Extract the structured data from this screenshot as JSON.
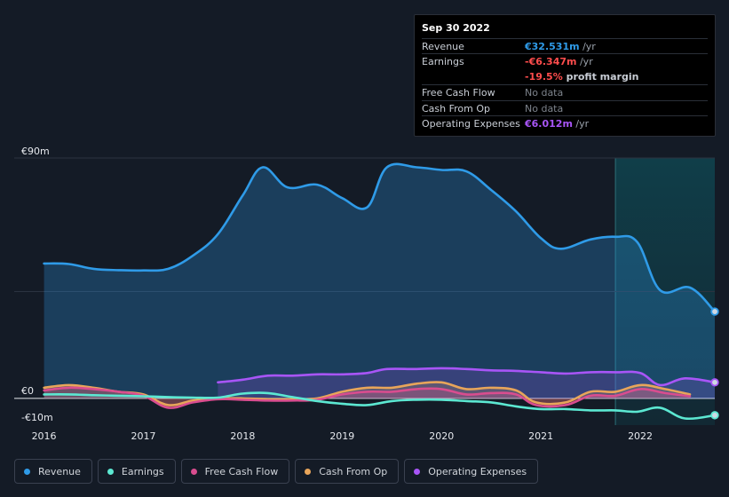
{
  "tooltip": {
    "date": "Sep 30 2022",
    "rows": [
      {
        "label": "Revenue",
        "value": "€32.531m",
        "unit": " /yr",
        "color": "#2f9be8"
      },
      {
        "label": "Earnings",
        "value": "-€6.347m",
        "unit": " /yr",
        "color": "#ff4d4d"
      },
      {
        "label": "",
        "value": "-19.5%",
        "unit": " profit margin",
        "color": "#ff4d4d"
      },
      {
        "label": "Free Cash Flow",
        "value": "",
        "unit": "No data",
        "color": "#7d838c"
      },
      {
        "label": "Cash From Op",
        "value": "",
        "unit": "No data",
        "color": "#7d838c"
      },
      {
        "label": "Operating Expenses",
        "value": "€6.012m",
        "unit": " /yr",
        "color": "#a855f7"
      }
    ]
  },
  "legend": [
    {
      "label": "Revenue",
      "color": "#2f9be8"
    },
    {
      "label": "Earnings",
      "color": "#5ce8d2"
    },
    {
      "label": "Free Cash Flow",
      "color": "#d94d8f"
    },
    {
      "label": "Cash From Op",
      "color": "#e8a55a"
    },
    {
      "label": "Operating Expenses",
      "color": "#a855f7"
    }
  ],
  "chart_data": {
    "type": "area",
    "title": "",
    "xlabel": "",
    "ylabel": "",
    "y_tick_labels": [
      "€90m",
      "€0",
      "-€10m"
    ],
    "x_tick_labels": [
      "2016",
      "2017",
      "2018",
      "2019",
      "2020",
      "2021",
      "2022"
    ],
    "x_ticks": [
      2016,
      2017,
      2018,
      2019,
      2020,
      2021,
      2022
    ],
    "xlim": [
      2015.7,
      2022.75
    ],
    "ylim": [
      -10,
      90
    ],
    "grid": "horizontal",
    "legend_position": "bottom",
    "highlight_range": [
      2021.75,
      2022.75
    ],
    "series": [
      {
        "name": "Revenue",
        "color": "#2f9be8",
        "fill": true,
        "x": [
          2016.0,
          2016.25,
          2016.5,
          2016.75,
          2017.0,
          2017.25,
          2017.5,
          2017.75,
          2018.0,
          2018.2,
          2018.45,
          2018.75,
          2019.0,
          2019.25,
          2019.45,
          2019.75,
          2020.0,
          2020.25,
          2020.5,
          2020.75,
          2021.0,
          2021.2,
          2021.5,
          2021.75,
          2021.97,
          2022.2,
          2022.5,
          2022.75
        ],
        "y": [
          50.5,
          50.3,
          48.5,
          48.0,
          47.9,
          48.5,
          53.5,
          61.5,
          76.0,
          86.5,
          79.0,
          80.0,
          75.0,
          71.5,
          86.5,
          86.5,
          85.5,
          85.0,
          78.0,
          70.0,
          60.0,
          56.0,
          59.5,
          60.5,
          58.5,
          40.5,
          41.5,
          32.5
        ]
      },
      {
        "name": "Earnings",
        "color": "#5ce8d2",
        "fill": false,
        "x": [
          2016.0,
          2016.25,
          2016.5,
          2016.75,
          2017.0,
          2017.25,
          2017.5,
          2017.75,
          2018.0,
          2018.25,
          2018.5,
          2018.75,
          2019.0,
          2019.25,
          2019.5,
          2019.75,
          2020.0,
          2020.25,
          2020.5,
          2020.75,
          2021.0,
          2021.25,
          2021.5,
          2021.75,
          2021.97,
          2022.2,
          2022.45,
          2022.75
        ],
        "y": [
          1.5,
          1.5,
          1.2,
          1.0,
          0.8,
          0.5,
          0.3,
          0.3,
          1.8,
          2.0,
          0.5,
          -1.0,
          -2.0,
          -2.5,
          -1.0,
          -0.5,
          -0.5,
          -1.0,
          -1.5,
          -3.0,
          -4.0,
          -4.0,
          -4.5,
          -4.5,
          -5.0,
          -3.5,
          -7.5,
          -6.3
        ]
      },
      {
        "name": "Free Cash Flow",
        "color": "#d94d8f",
        "fill": true,
        "x": [
          2016.0,
          2016.25,
          2016.5,
          2016.75,
          2017.0,
          2017.25,
          2017.5,
          2017.75,
          2018.0,
          2018.25,
          2018.5,
          2018.75,
          2019.0,
          2019.25,
          2019.5,
          2019.75,
          2020.0,
          2020.25,
          2020.5,
          2020.75,
          2020.95,
          2021.25,
          2021.5,
          2021.75,
          2022.0,
          2022.25,
          2022.5
        ],
        "y": [
          3.0,
          4.0,
          3.5,
          2.5,
          1.0,
          -3.5,
          -1.5,
          -0.3,
          -0.5,
          -0.8,
          -0.8,
          -0.5,
          1.5,
          2.5,
          2.5,
          3.5,
          3.5,
          1.5,
          2.0,
          1.5,
          -2.5,
          -2.5,
          1.0,
          1.0,
          3.5,
          2.0,
          0.8
        ]
      },
      {
        "name": "Cash From Op",
        "color": "#e8a55a",
        "fill": true,
        "x": [
          2016.0,
          2016.25,
          2016.5,
          2016.75,
          2017.0,
          2017.25,
          2017.5,
          2017.75,
          2018.0,
          2018.25,
          2018.5,
          2018.75,
          2019.0,
          2019.25,
          2019.5,
          2019.75,
          2020.0,
          2020.25,
          2020.5,
          2020.75,
          2020.95,
          2021.25,
          2021.5,
          2021.75,
          2022.0,
          2022.25,
          2022.5
        ],
        "y": [
          4.0,
          5.0,
          4.0,
          2.5,
          1.5,
          -2.5,
          -0.8,
          0.0,
          0.0,
          -0.3,
          -0.3,
          0.0,
          2.5,
          4.0,
          4.0,
          5.5,
          6.0,
          3.5,
          4.0,
          3.0,
          -1.5,
          -1.5,
          2.5,
          2.5,
          5.0,
          3.5,
          1.5
        ]
      },
      {
        "name": "Operating Expenses",
        "color": "#a855f7",
        "fill": true,
        "x": [
          2017.75,
          2018.0,
          2018.25,
          2018.5,
          2018.75,
          2019.0,
          2019.25,
          2019.45,
          2019.75,
          2020.0,
          2020.25,
          2020.5,
          2020.75,
          2021.0,
          2021.25,
          2021.5,
          2021.75,
          2022.0,
          2022.2,
          2022.45,
          2022.75
        ],
        "y": [
          6.0,
          7.0,
          8.5,
          8.5,
          9.0,
          9.0,
          9.5,
          11.0,
          11.0,
          11.3,
          11.0,
          10.5,
          10.3,
          9.8,
          9.3,
          9.8,
          9.8,
          9.5,
          5.0,
          7.5,
          6.0
        ]
      }
    ]
  }
}
